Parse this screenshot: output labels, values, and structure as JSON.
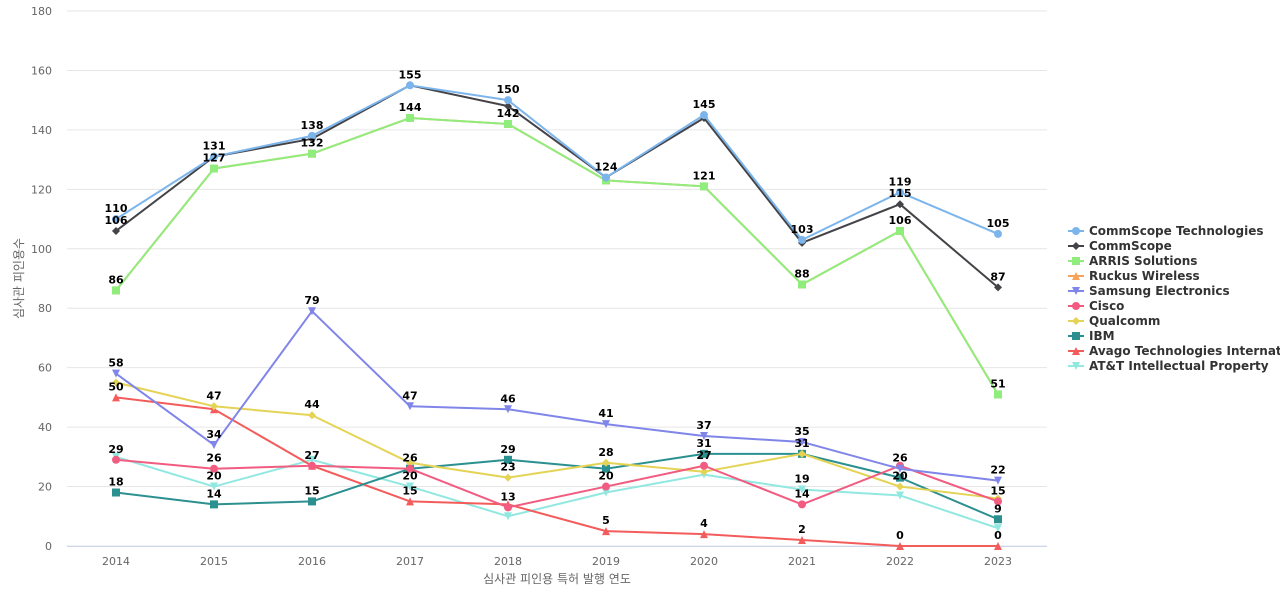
{
  "chart_data": {
    "type": "line",
    "title": "",
    "xlabel": "심사관 피인용 특허 발행 연도",
    "ylabel": "심사관 피인용수",
    "ylim": [
      0,
      180
    ],
    "yticks": [
      0,
      20,
      40,
      60,
      80,
      100,
      120,
      140,
      160,
      180
    ],
    "grid": true,
    "legend_position": "right",
    "categories": [
      "2014",
      "2015",
      "2016",
      "2017",
      "2018",
      "2019",
      "2020",
      "2021",
      "2022",
      "2023"
    ],
    "series": [
      {
        "name": "CommScope Technologies",
        "color": "#7cb5ec",
        "marker": "circle",
        "values": [
          110,
          131,
          138,
          155,
          150,
          124,
          145,
          103,
          119,
          105
        ],
        "label_pos": "above"
      },
      {
        "name": "CommScope",
        "color": "#434348",
        "marker": "diamond",
        "values": [
          106,
          131,
          137,
          155,
          148,
          124,
          144,
          102,
          115,
          87
        ],
        "label_pos": "none"
      },
      {
        "name": "ARRIS Solutions",
        "color": "#90ed7d",
        "marker": "square",
        "values": [
          86,
          127,
          132,
          144,
          142,
          123,
          121,
          88,
          106,
          51
        ],
        "label_pos": "none"
      },
      {
        "name": "Ruckus Wireless",
        "color": "#f7a35c",
        "marker": "triangle",
        "values": [
          86,
          127,
          132,
          144,
          142,
          123,
          121,
          88,
          106,
          51
        ],
        "label_pos": "none"
      },
      {
        "name": "Samsung Electronics",
        "color": "#8085e9",
        "marker": "triangle-down",
        "values": [
          58,
          34,
          79,
          47,
          46,
          41,
          37,
          35,
          26,
          22
        ],
        "label_pos": "above"
      },
      {
        "name": "Cisco",
        "color": "#f15c80",
        "marker": "circle",
        "values": [
          29,
          26,
          27,
          26,
          13,
          20,
          27,
          14,
          27,
          15
        ],
        "label_pos": "none"
      },
      {
        "name": "Qualcomm",
        "color": "#e4d354",
        "marker": "diamond",
        "values": [
          55,
          47,
          44,
          28,
          23,
          28,
          25,
          31,
          20,
          16
        ],
        "label_pos": "none"
      },
      {
        "name": "IBM",
        "color": "#2b908f",
        "marker": "square",
        "values": [
          18,
          14,
          15,
          26,
          29,
          26,
          31,
          31,
          23,
          9
        ],
        "label_pos": "none"
      },
      {
        "name": "Avago Technologies Internat...",
        "color": "#f45b5b",
        "marker": "triangle",
        "values": [
          50,
          46,
          27,
          15,
          14,
          5,
          4,
          2,
          0,
          0
        ],
        "label_pos": "none"
      },
      {
        "name": "AT&T Intellectual Property",
        "color": "#91e8e1",
        "marker": "triangle-down",
        "values": [
          30,
          20,
          29,
          20,
          10,
          18,
          24,
          19,
          17,
          6
        ],
        "label_pos": "none"
      }
    ],
    "data_labels": [
      {
        "x": "2014",
        "y": 110,
        "text": "110"
      },
      {
        "x": "2014",
        "y": 106,
        "text": "106"
      },
      {
        "x": "2014",
        "y": 86,
        "text": "86"
      },
      {
        "x": "2014",
        "y": 58,
        "text": "58"
      },
      {
        "x": "2014",
        "y": 50,
        "text": "50"
      },
      {
        "x": "2014",
        "y": 29,
        "text": "29"
      },
      {
        "x": "2014",
        "y": 18,
        "text": "18"
      },
      {
        "x": "2015",
        "y": 131,
        "text": "131"
      },
      {
        "x": "2015",
        "y": 127,
        "text": "127"
      },
      {
        "x": "2015",
        "y": 47,
        "text": "47"
      },
      {
        "x": "2015",
        "y": 34,
        "text": "34"
      },
      {
        "x": "2015",
        "y": 26,
        "text": "26"
      },
      {
        "x": "2015",
        "y": 20,
        "text": "20"
      },
      {
        "x": "2015",
        "y": 14,
        "text": "14"
      },
      {
        "x": "2016",
        "y": 138,
        "text": "138"
      },
      {
        "x": "2016",
        "y": 132,
        "text": "132"
      },
      {
        "x": "2016",
        "y": 79,
        "text": "79"
      },
      {
        "x": "2016",
        "y": 44,
        "text": "44"
      },
      {
        "x": "2016",
        "y": 27,
        "text": "27"
      },
      {
        "x": "2016",
        "y": 15,
        "text": "15"
      },
      {
        "x": "2017",
        "y": 155,
        "text": "155"
      },
      {
        "x": "2017",
        "y": 144,
        "text": "144"
      },
      {
        "x": "2017",
        "y": 47,
        "text": "47"
      },
      {
        "x": "2017",
        "y": 26,
        "text": "26"
      },
      {
        "x": "2017",
        "y": 20,
        "text": "20"
      },
      {
        "x": "2017",
        "y": 15,
        "text": "15"
      },
      {
        "x": "2018",
        "y": 150,
        "text": "150"
      },
      {
        "x": "2018",
        "y": 142,
        "text": "142"
      },
      {
        "x": "2018",
        "y": 46,
        "text": "46"
      },
      {
        "x": "2018",
        "y": 29,
        "text": "29"
      },
      {
        "x": "2018",
        "y": 23,
        "text": "23"
      },
      {
        "x": "2018",
        "y": 13,
        "text": "13"
      },
      {
        "x": "2019",
        "y": 124,
        "text": "124"
      },
      {
        "x": "2019",
        "y": 41,
        "text": "41"
      },
      {
        "x": "2019",
        "y": 28,
        "text": "28"
      },
      {
        "x": "2019",
        "y": 20,
        "text": "20"
      },
      {
        "x": "2019",
        "y": 5,
        "text": "5"
      },
      {
        "x": "2020",
        "y": 145,
        "text": "145"
      },
      {
        "x": "2020",
        "y": 121,
        "text": "121"
      },
      {
        "x": "2020",
        "y": 37,
        "text": "37"
      },
      {
        "x": "2020",
        "y": 31,
        "text": "31"
      },
      {
        "x": "2020",
        "y": 27,
        "text": "27"
      },
      {
        "x": "2020",
        "y": 4,
        "text": "4"
      },
      {
        "x": "2021",
        "y": 103,
        "text": "103"
      },
      {
        "x": "2021",
        "y": 88,
        "text": "88"
      },
      {
        "x": "2021",
        "y": 35,
        "text": "35"
      },
      {
        "x": "2021",
        "y": 31,
        "text": "31"
      },
      {
        "x": "2021",
        "y": 19,
        "text": "19"
      },
      {
        "x": "2021",
        "y": 14,
        "text": "14"
      },
      {
        "x": "2021",
        "y": 2,
        "text": "2"
      },
      {
        "x": "2022",
        "y": 119,
        "text": "119"
      },
      {
        "x": "2022",
        "y": 115,
        "text": "115"
      },
      {
        "x": "2022",
        "y": 106,
        "text": "106"
      },
      {
        "x": "2022",
        "y": 26,
        "text": "26"
      },
      {
        "x": "2022",
        "y": 20,
        "text": "20"
      },
      {
        "x": "2022",
        "y": 0,
        "text": "0"
      },
      {
        "x": "2023",
        "y": 105,
        "text": "105"
      },
      {
        "x": "2023",
        "y": 87,
        "text": "87"
      },
      {
        "x": "2023",
        "y": 51,
        "text": "51"
      },
      {
        "x": "2023",
        "y": 22,
        "text": "22"
      },
      {
        "x": "2023",
        "y": 15,
        "text": "15"
      },
      {
        "x": "2023",
        "y": 9,
        "text": "9"
      },
      {
        "x": "2023",
        "y": 0,
        "text": "0"
      }
    ]
  }
}
